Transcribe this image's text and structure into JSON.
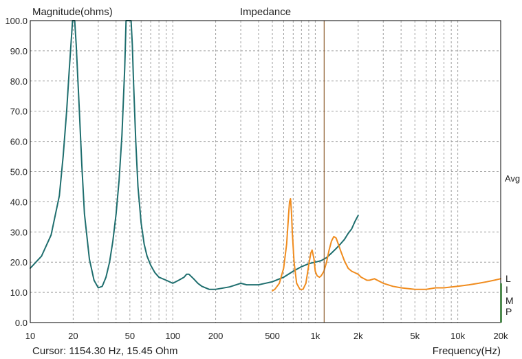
{
  "chart_data": {
    "type": "line",
    "title": "Impedance",
    "ylabel": "Magnitude(ohms)",
    "xlabel": "Frequency(Hz)",
    "cursor_readout": "Cursor: 1154.30 Hz, 15.45 Ohm",
    "cursor_x": 1154.3,
    "x_scale": "log",
    "xlim": [
      10,
      20000
    ],
    "ylim": [
      0,
      100
    ],
    "grid": true,
    "x_ticks": [
      {
        "v": 10,
        "label": "10"
      },
      {
        "v": 20,
        "label": "20"
      },
      {
        "v": 50,
        "label": "50"
      },
      {
        "v": 100,
        "label": "100"
      },
      {
        "v": 200,
        "label": "200"
      },
      {
        "v": 500,
        "label": "500"
      },
      {
        "v": 1000,
        "label": "1k"
      },
      {
        "v": 2000,
        "label": "2k"
      },
      {
        "v": 5000,
        "label": "5k"
      },
      {
        "v": 10000,
        "label": "10k"
      },
      {
        "v": 20000,
        "label": "20k"
      }
    ],
    "y_ticks": [
      {
        "v": 0,
        "label": "0.0"
      },
      {
        "v": 10,
        "label": "10.0"
      },
      {
        "v": 20,
        "label": "20.0"
      },
      {
        "v": 30,
        "label": "30.0"
      },
      {
        "v": 40,
        "label": "40.0"
      },
      {
        "v": 50,
        "label": "50.0"
      },
      {
        "v": 60,
        "label": "60.0"
      },
      {
        "v": 70,
        "label": "70.0"
      },
      {
        "v": 80,
        "label": "80.0"
      },
      {
        "v": 90,
        "label": "90.0"
      },
      {
        "v": 100,
        "label": "100.0"
      }
    ],
    "right_labels": [
      "Avg",
      "L",
      "I",
      "M",
      "P"
    ],
    "colors": {
      "axis": "#000000",
      "grid": "#a0a0a0",
      "cursor": "#8b5a2b",
      "side_bar": "#4e8a4e",
      "series1": "#1e6e6e",
      "series2": "#f08c1e"
    },
    "series": [
      {
        "color": "#1e6e6e",
        "x": [
          10,
          12,
          14,
          16,
          17,
          18,
          18.8,
          19.8,
          20.5,
          21,
          22,
          23,
          24,
          26,
          28,
          30,
          32,
          34,
          36,
          38,
          40,
          42,
          44,
          46,
          47,
          48.5,
          51,
          52,
          53,
          55,
          57,
          60,
          63,
          66,
          70,
          75,
          80,
          90,
          100,
          110,
          120,
          125,
          130,
          140,
          150,
          160,
          180,
          200,
          250,
          300,
          330,
          400,
          500,
          600,
          700,
          800,
          900,
          1000,
          1100,
          1200,
          1300,
          1400,
          1500,
          1600,
          1700,
          1800,
          1900,
          2000
        ],
        "y": [
          18,
          22,
          29,
          42,
          55,
          70,
          84,
          100,
          100,
          92,
          72,
          52,
          36,
          21,
          14,
          11.5,
          12,
          15,
          20,
          27,
          36,
          47,
          62,
          84,
          100,
          100,
          100,
          92,
          80,
          60,
          45,
          33,
          26,
          22,
          19,
          16.5,
          15,
          14,
          13,
          14,
          15,
          16,
          16,
          14.5,
          13,
          12,
          11,
          11,
          11.8,
          13,
          12.5,
          12.5,
          13.5,
          15,
          17,
          18.5,
          19.5,
          20,
          20.5,
          21.5,
          23,
          24.5,
          26,
          27.5,
          29.5,
          31,
          33.5,
          35.5
        ]
      },
      {
        "color": "#f08c1e",
        "x": [
          500,
          520,
          560,
          600,
          630,
          650,
          660,
          670,
          680,
          690,
          710,
          740,
          780,
          820,
          860,
          900,
          930,
          950,
          980,
          1000,
          1030,
          1070,
          1100,
          1150,
          1200,
          1250,
          1300,
          1350,
          1400,
          1450,
          1500,
          1600,
          1700,
          1800,
          1900,
          2000,
          2100,
          2200,
          2300,
          2400,
          2600,
          3000,
          3500,
          4000,
          5000,
          6000,
          7000,
          8000,
          10000,
          12000,
          14000,
          16000,
          18000,
          20000
        ],
        "y": [
          10.5,
          11,
          13,
          18,
          26,
          36,
          40,
          41,
          37,
          30,
          20,
          13,
          11,
          11,
          13,
          19,
          23,
          24,
          21,
          17,
          15.5,
          15,
          15.5,
          17,
          20,
          24,
          27,
          28.5,
          28,
          26,
          24,
          20.5,
          18,
          17,
          16.5,
          16,
          15,
          14.5,
          14,
          14,
          14.5,
          13,
          12,
          11.5,
          11,
          11,
          11.5,
          11.5,
          12,
          12.5,
          13,
          13.5,
          14,
          14.5
        ]
      }
    ]
  }
}
